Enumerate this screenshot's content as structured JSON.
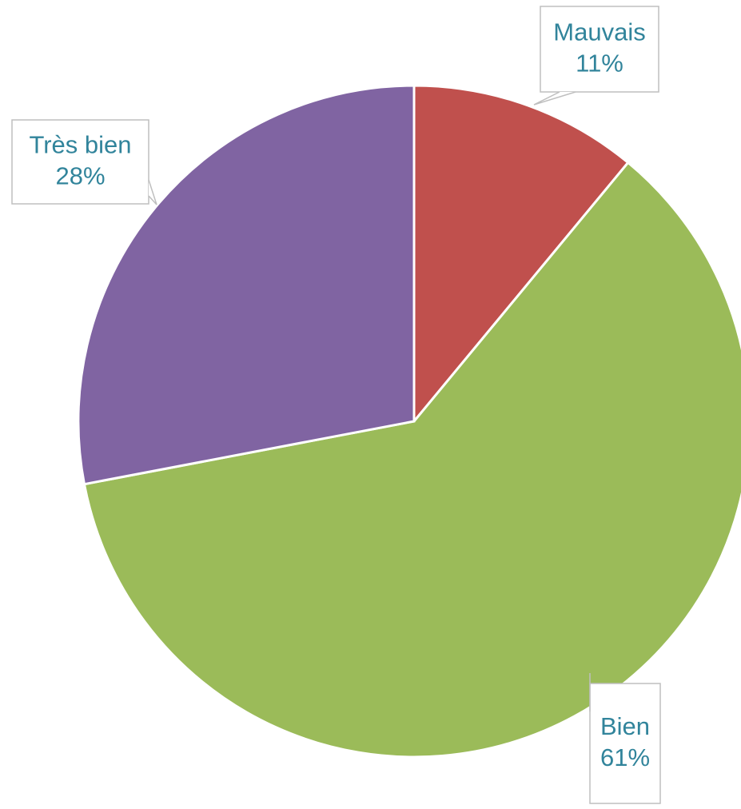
{
  "chart_data": {
    "type": "pie",
    "categories": [
      "Mauvais",
      "Bien",
      "Très bien"
    ],
    "values": [
      11,
      61,
      28
    ],
    "value_labels": [
      "11%",
      "61%",
      "28%"
    ],
    "colors": [
      "#c0504d",
      "#9bbb59",
      "#8064a2"
    ]
  }
}
